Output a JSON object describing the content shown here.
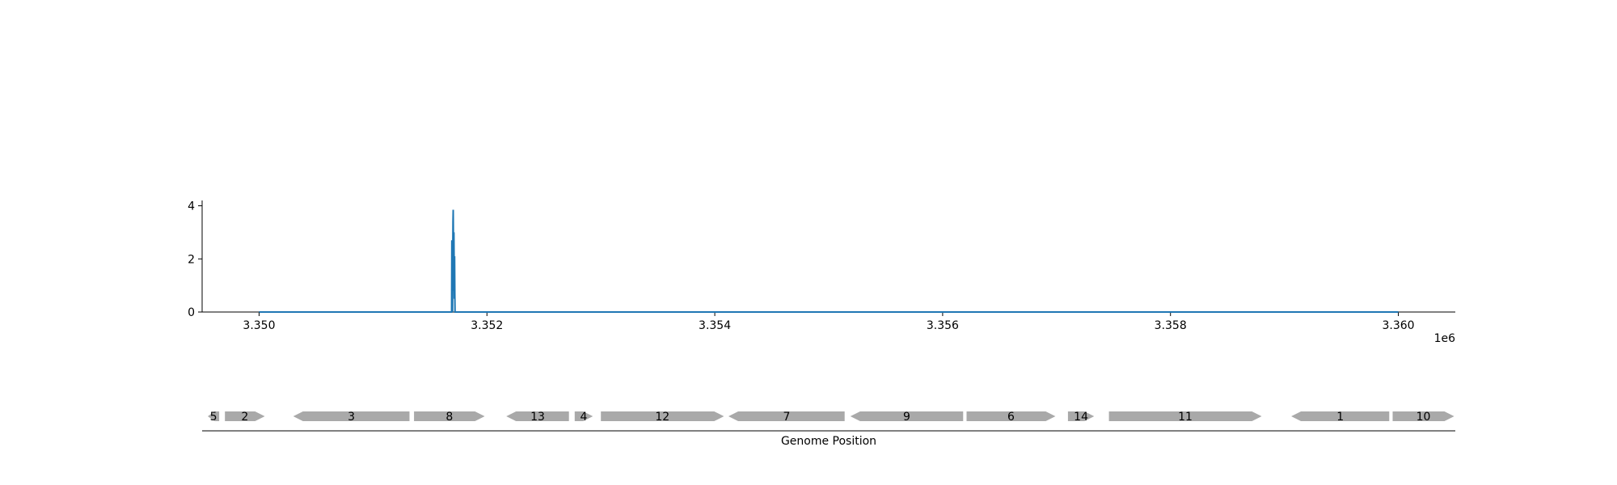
{
  "chart_data": [
    {
      "type": "line",
      "title": "",
      "xlabel": "",
      "ylabel": "",
      "x_offset_label": "1e6",
      "xlim": [
        3349500,
        3360500
      ],
      "ylim": [
        0,
        4.2
      ],
      "x_ticks": [
        {
          "value": 3350000,
          "label": "3.350"
        },
        {
          "value": 3352000,
          "label": "3.352"
        },
        {
          "value": 3354000,
          "label": "3.354"
        },
        {
          "value": 3356000,
          "label": "3.356"
        },
        {
          "value": 3358000,
          "label": "3.358"
        },
        {
          "value": 3360000,
          "label": "3.360"
        }
      ],
      "y_ticks": [
        {
          "value": 0,
          "label": "0"
        },
        {
          "value": 2,
          "label": "2"
        },
        {
          "value": 4,
          "label": "4"
        }
      ],
      "grid": false,
      "color": "#1f77b4",
      "series": [
        {
          "x": [
            3350000,
            3351690,
            3351692,
            3351694,
            3351696,
            3351698,
            3351700,
            3351702,
            3351704,
            3351706,
            3351708,
            3351710,
            3351712,
            3351714,
            3351716,
            3351718,
            3351720,
            3351722,
            3351724,
            3360000
          ],
          "y": [
            0,
            0,
            2.7,
            0.4,
            1.5,
            0,
            2.2,
            3.4,
            3.85,
            2.5,
            0.8,
            3.0,
            1.8,
            0.5,
            2.1,
            0.7,
            0,
            0,
            0,
            0
          ]
        }
      ]
    },
    {
      "type": "gene_track",
      "xlabel": "Genome Position",
      "color": "#a9a9a9",
      "genes": [
        {
          "label": "5",
          "start": 3349550,
          "end": 3349650,
          "strand": -1
        },
        {
          "label": "2",
          "start": 3349700,
          "end": 3350050,
          "strand": 1
        },
        {
          "label": "3",
          "start": 3350300,
          "end": 3351320,
          "strand": -1
        },
        {
          "label": "8",
          "start": 3351360,
          "end": 3351980,
          "strand": 1
        },
        {
          "label": "13",
          "start": 3352170,
          "end": 3352720,
          "strand": -1
        },
        {
          "label": "4",
          "start": 3352770,
          "end": 3352930,
          "strand": 1
        },
        {
          "label": "12",
          "start": 3353000,
          "end": 3354080,
          "strand": 1
        },
        {
          "label": "7",
          "start": 3354120,
          "end": 3355140,
          "strand": -1
        },
        {
          "label": "9",
          "start": 3355190,
          "end": 3356180,
          "strand": -1
        },
        {
          "label": "6",
          "start": 3356210,
          "end": 3356990,
          "strand": 1
        },
        {
          "label": "14",
          "start": 3357100,
          "end": 3357330,
          "strand": 1
        },
        {
          "label": "11",
          "start": 3357460,
          "end": 3358800,
          "strand": 1
        },
        {
          "label": "1",
          "start": 3359060,
          "end": 3359920,
          "strand": -1
        },
        {
          "label": "10",
          "start": 3359950,
          "end": 3360490,
          "strand": 1
        }
      ]
    }
  ]
}
